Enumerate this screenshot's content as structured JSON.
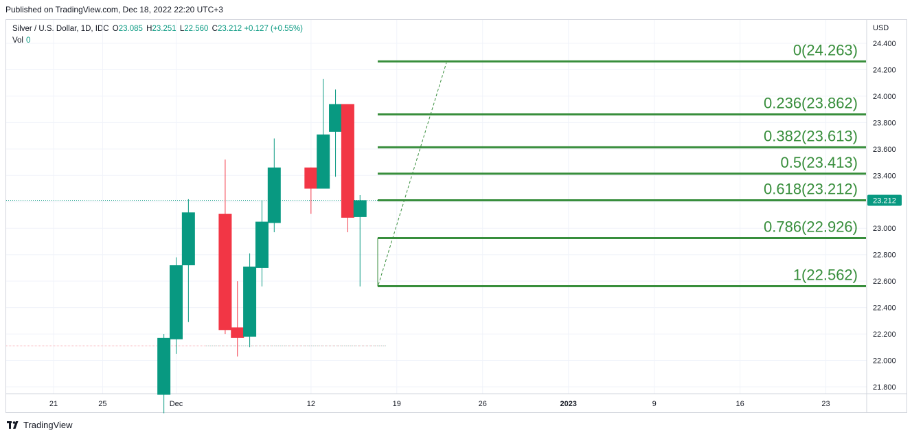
{
  "published": "Published on TradingView.com, Dec 18, 2022 22:20 UTC+3",
  "legend": {
    "symbol": "Silver / U.S. Dollar, 1D, IDC",
    "o_label": "O",
    "o": "23.085",
    "h_label": "H",
    "h": "23.251",
    "l_label": "L",
    "l": "22.560",
    "c_label": "C",
    "c": "23.212",
    "change": "+0.127 (+0.55%)",
    "vol_label": "Vol",
    "vol": "0"
  },
  "brand": "TradingView",
  "colors": {
    "up": "#089981",
    "down": "#f23645",
    "fib": "#388e3c",
    "fib_text": "#388e3c"
  },
  "chart_data": {
    "type": "candlestick",
    "currency": "USD",
    "ylim": [
      21.7,
      24.55
    ],
    "y_ticks": [
      "21.800",
      "22.000",
      "22.200",
      "22.400",
      "22.600",
      "22.800",
      "23.000",
      "23.200",
      "23.400",
      "23.600",
      "23.800",
      "24.000",
      "24.200",
      "24.400"
    ],
    "x_ticks": [
      "21",
      "25",
      "Dec",
      "12",
      "19",
      "26",
      "2023",
      "9",
      "16",
      "23"
    ],
    "last_price": "23.212",
    "candles": [
      {
        "date": "2022-11-30",
        "o": 21.74,
        "h": 22.2,
        "l": 21.6,
        "c": 22.17
      },
      {
        "date": "2022-12-01",
        "o": 22.16,
        "h": 22.78,
        "l": 22.05,
        "c": 22.72
      },
      {
        "date": "2022-12-02",
        "o": 22.72,
        "h": 23.22,
        "l": 22.29,
        "c": 23.12
      },
      {
        "date": "2022-12-05",
        "o": 23.11,
        "h": 23.52,
        "l": 22.2,
        "c": 22.23
      },
      {
        "date": "2022-12-06",
        "o": 22.25,
        "h": 22.6,
        "l": 22.03,
        "c": 22.17
      },
      {
        "date": "2022-12-07",
        "o": 22.18,
        "h": 22.81,
        "l": 22.1,
        "c": 22.71
      },
      {
        "date": "2022-12-08",
        "o": 22.7,
        "h": 23.21,
        "l": 22.56,
        "c": 23.05
      },
      {
        "date": "2022-12-09",
        "o": 23.04,
        "h": 23.68,
        "l": 22.97,
        "c": 23.46
      },
      {
        "date": "2022-12-12",
        "o": 23.46,
        "h": 23.46,
        "l": 23.11,
        "c": 23.3
      },
      {
        "date": "2022-12-13",
        "o": 23.3,
        "h": 24.13,
        "l": 23.3,
        "c": 23.71
      },
      {
        "date": "2022-12-14",
        "o": 23.73,
        "h": 24.05,
        "l": 23.39,
        "c": 23.94
      },
      {
        "date": "2022-12-15",
        "o": 23.94,
        "h": 23.94,
        "l": 22.97,
        "c": 23.08
      },
      {
        "date": "2022-12-16",
        "o": 23.085,
        "h": 23.251,
        "l": 22.56,
        "c": 23.212
      }
    ],
    "reference_line": 22.11,
    "fib_levels": [
      {
        "label": "0(24.263)",
        "value": 24.263
      },
      {
        "label": "0.236(23.862)",
        "value": 23.862
      },
      {
        "label": "0.382(23.613)",
        "value": 23.613
      },
      {
        "label": "0.5(23.413)",
        "value": 23.413
      },
      {
        "label": "0.618(23.212)",
        "value": 23.212
      },
      {
        "label": "0.786(22.926)",
        "value": 22.926
      },
      {
        "label": "1(22.562)",
        "value": 22.562
      }
    ],
    "trend_line": {
      "from": 22.562,
      "to": 24.263
    }
  }
}
